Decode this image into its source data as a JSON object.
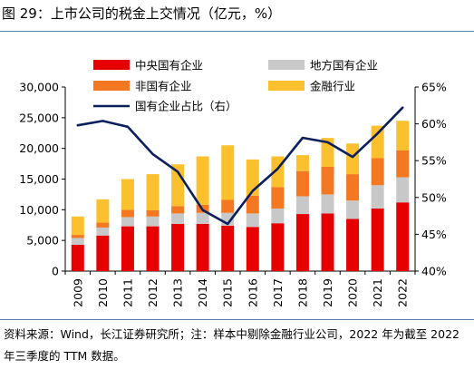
{
  "title": "图 29：上市公司的税金上交情况（亿元，%）",
  "source": "资料来源：Wind，长江证券研究所；注：样本中剔除金融行业公司，2022 年为截至 2022 年三季度的 TTM 数据。",
  "chart_data": {
    "type": "bar",
    "stacked": true,
    "categories": [
      "2009",
      "2010",
      "2011",
      "2012",
      "2013",
      "2014",
      "2015",
      "2016",
      "2017",
      "2018",
      "2019",
      "2020",
      "2021",
      "2022"
    ],
    "series": [
      {
        "name": "中央国有企业",
        "color": "#e60000",
        "values": [
          4300,
          5800,
          7300,
          7300,
          7700,
          7700,
          7400,
          7200,
          7800,
          9300,
          9400,
          8500,
          10200,
          11200
        ]
      },
      {
        "name": "地方国有企业",
        "color": "#c8c8c8",
        "values": [
          1100,
          1300,
          1500,
          1600,
          1700,
          1800,
          2100,
          2200,
          2400,
          2900,
          3100,
          3000,
          3800,
          4100
        ]
      },
      {
        "name": "非国有企业",
        "color": "#f47721",
        "values": [
          500,
          800,
          1200,
          1000,
          1200,
          1300,
          2100,
          2900,
          3500,
          4100,
          4500,
          4300,
          4400,
          4400
        ]
      },
      {
        "name": "金融行业",
        "color": "#fbc02d",
        "values": [
          3000,
          3800,
          5000,
          5900,
          6800,
          7900,
          8900,
          5900,
          5000,
          2600,
          4700,
          5000,
          5300,
          4800
        ]
      }
    ],
    "line": {
      "name": "国有企业占比（右）",
      "color": "#0b1f5c",
      "axis": "right",
      "values": [
        59.8,
        60.4,
        59.6,
        55.9,
        53.5,
        48.3,
        46.4,
        50.9,
        53.9,
        58.1,
        57.5,
        55.5,
        58.7,
        62.2
      ]
    },
    "y_left": {
      "min": 0,
      "max": 30000,
      "step": 5000,
      "tick_labels": [
        "0",
        "5,000",
        "10,000",
        "15,000",
        "20,000",
        "25,000",
        "30,000"
      ]
    },
    "y_right": {
      "min": 40,
      "max": 65,
      "step": 5,
      "tick_labels": [
        "40%",
        "45%",
        "50%",
        "55%",
        "60%",
        "65%"
      ]
    },
    "legend": "top"
  }
}
